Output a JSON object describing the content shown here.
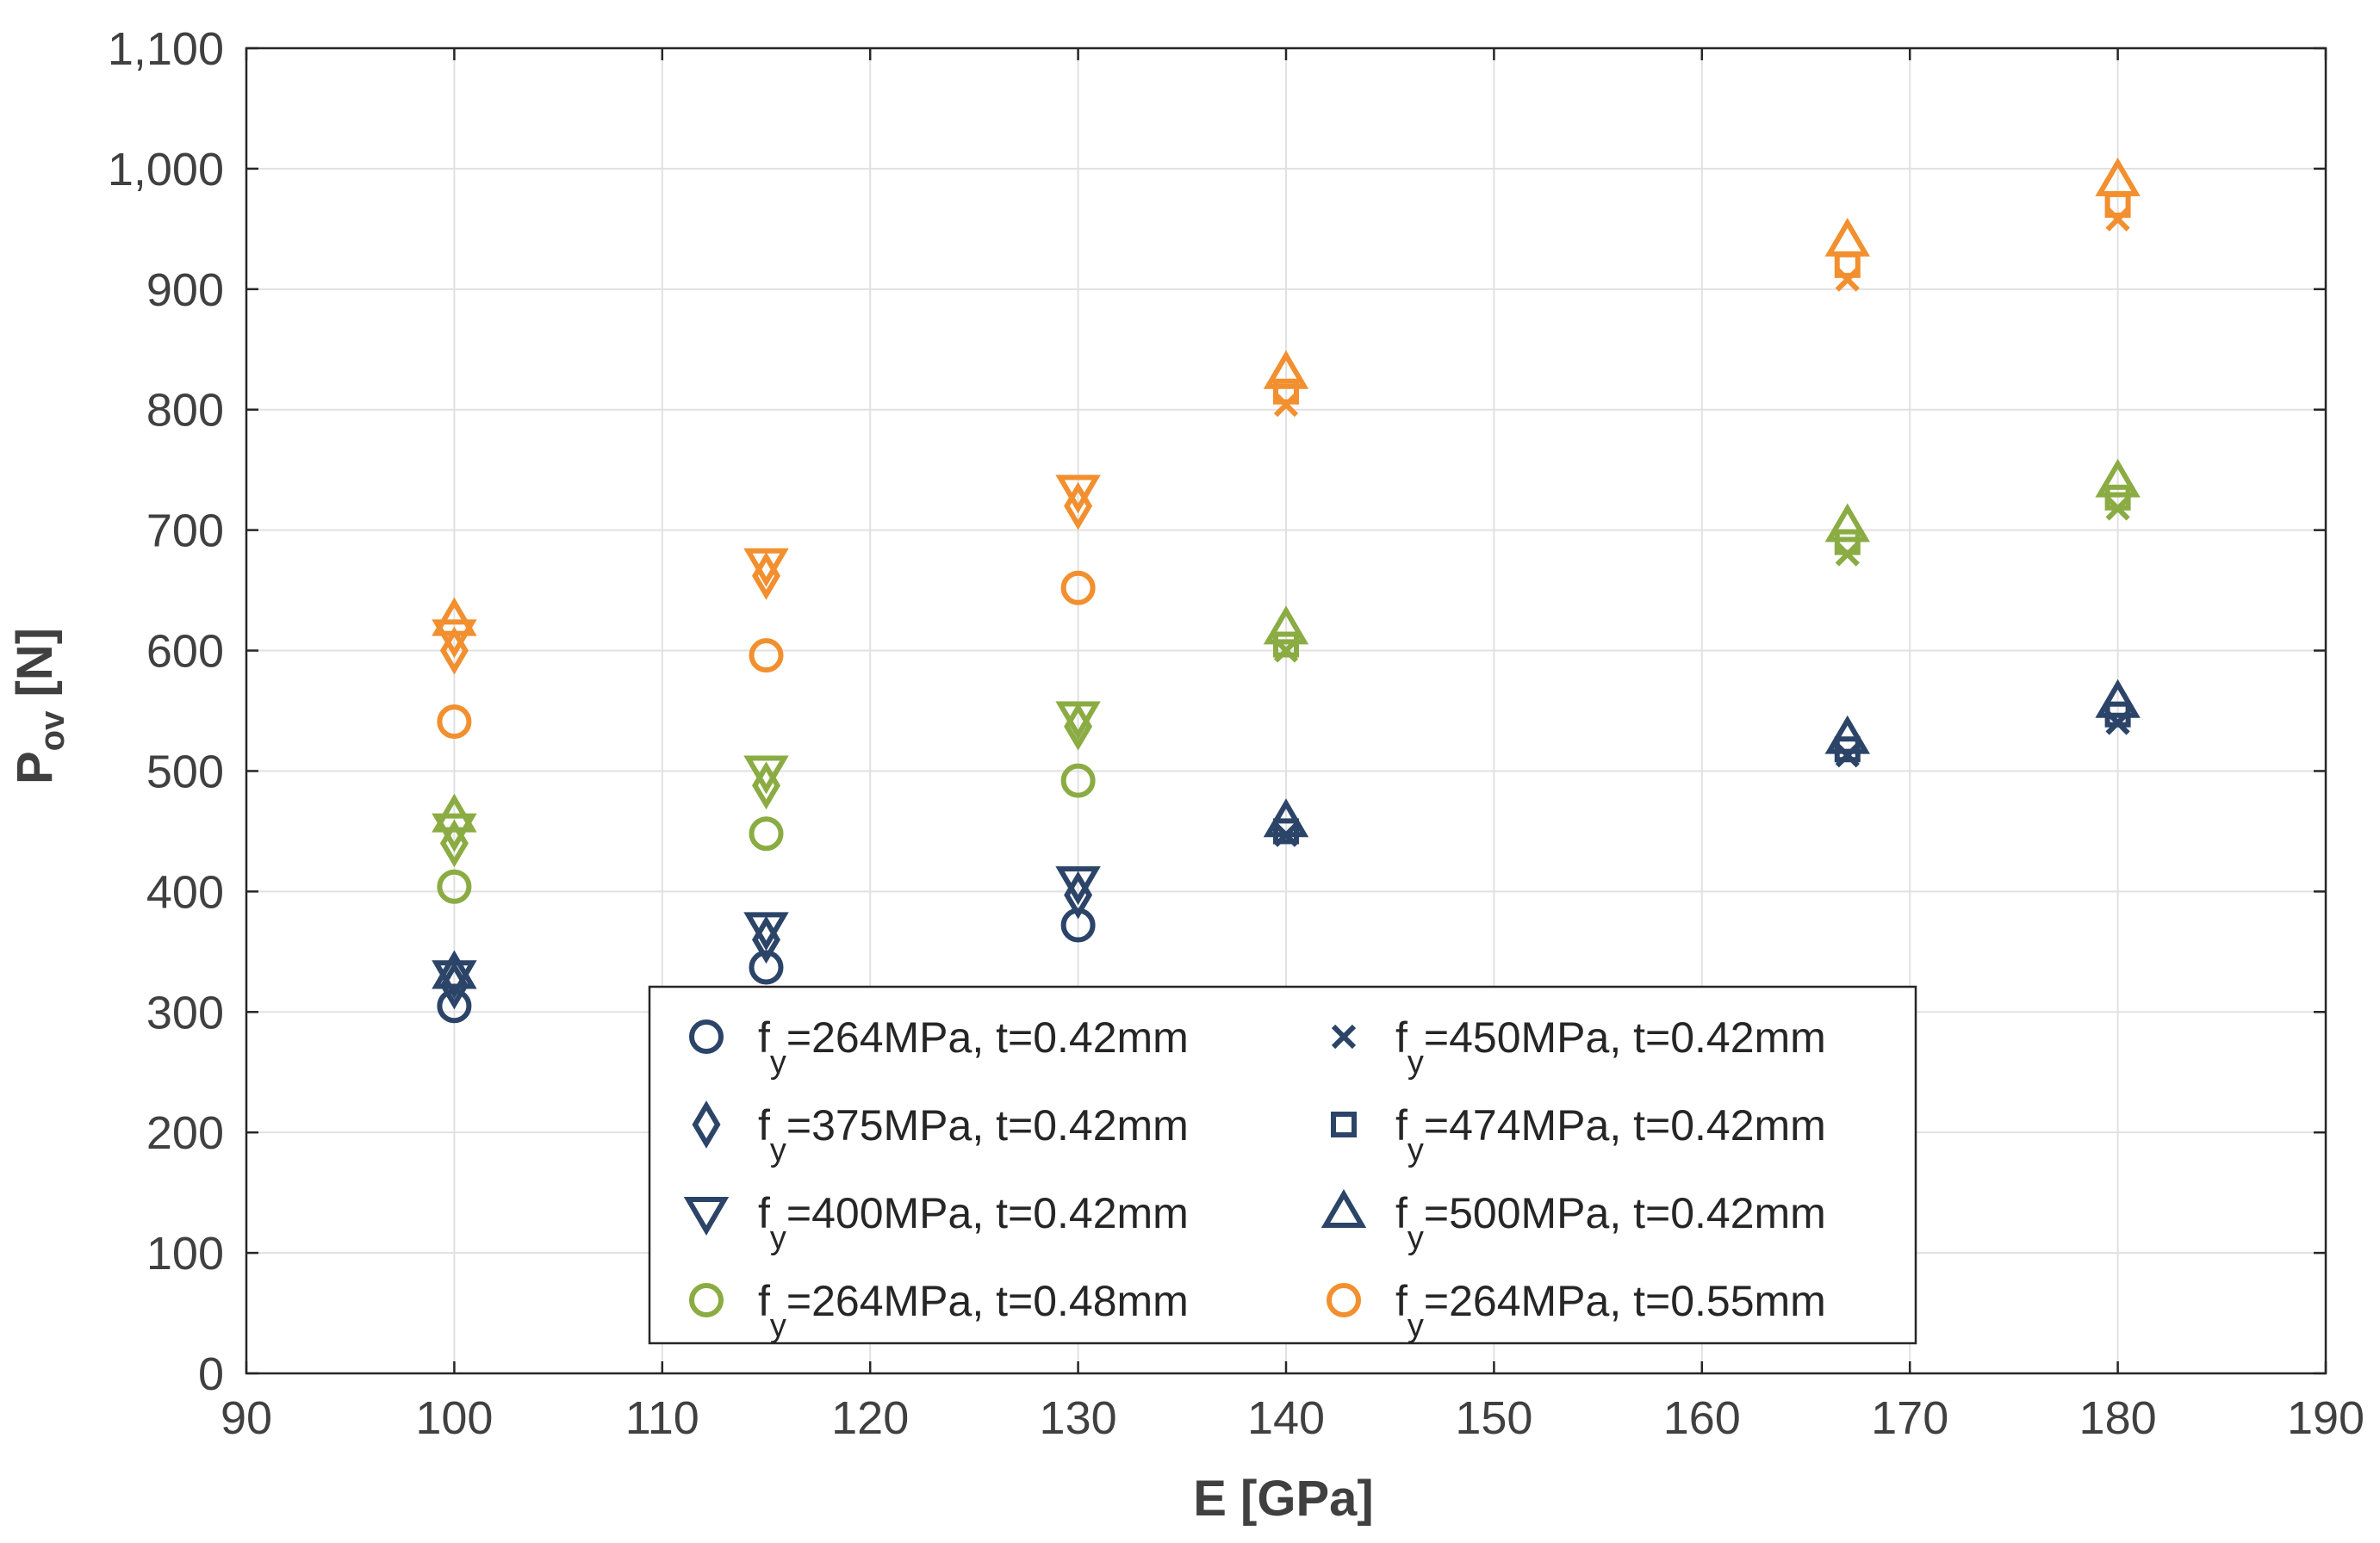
{
  "chart_data": {
    "type": "scatter",
    "title": "",
    "xlabel": "E [GPa]",
    "ylabel": {
      "main": "P",
      "sub": "ov",
      "unit": " [N]"
    },
    "xlim": [
      90,
      190
    ],
    "ylim": [
      0,
      1100
    ],
    "xticks": [
      90,
      100,
      110,
      120,
      130,
      140,
      150,
      160,
      170,
      180,
      190
    ],
    "yticks": [
      0,
      100,
      200,
      300,
      400,
      500,
      600,
      700,
      800,
      900,
      1000,
      1100
    ],
    "yticklabels": [
      "0",
      "100",
      "200",
      "300",
      "400",
      "500",
      "600",
      "700",
      "800",
      "900",
      "1,000",
      "1,100"
    ],
    "grid": true,
    "legend_position": "bottom-center",
    "colors": {
      "navy": "#2b4468",
      "green": "#8aac43",
      "orange": "#f28f2e"
    },
    "groups": [
      {
        "color": "#2b4468",
        "series": [
          {
            "legend_main": "f",
            "legend_sub": "y",
            "legend_rest": "=264MPa, t=0.42mm",
            "marker": "circle",
            "x": [
              100,
              115,
              130
            ],
            "y": [
              305,
              337,
              372
            ]
          },
          {
            "legend_main": "f",
            "legend_sub": "y",
            "legend_rest": "=375MPa, t=0.42mm",
            "marker": "diamond",
            "x": [
              100,
              115,
              130
            ],
            "y": [
              322,
              360,
              397
            ]
          },
          {
            "legend_main": "f",
            "legend_sub": "y",
            "legend_rest": "=400MPa, t=0.42mm",
            "marker": "triangle-down",
            "x": [
              100,
              115,
              130
            ],
            "y": [
              330,
              370,
              408
            ]
          },
          {
            "legend_main": "f",
            "legend_sub": "y",
            "legend_rest": "=450MPa, t=0.42mm",
            "marker": "x",
            "x": [
              140,
              167,
              180
            ],
            "y": [
              447,
              513,
              540
            ]
          },
          {
            "legend_main": "f",
            "legend_sub": "y",
            "legend_rest": "=474MPa, t=0.42mm",
            "marker": "square",
            "x": [
              140,
              167,
              180
            ],
            "y": [
              450,
              518,
              547
            ]
          },
          {
            "legend_main": "f",
            "legend_sub": "y",
            "legend_rest": "=500MPa, t=0.42mm",
            "marker": "triangle-up",
            "x": [
              100,
              140,
              167,
              180
            ],
            "y": [
              332,
              458,
              527,
              557
            ]
          }
        ]
      },
      {
        "color": "#8aac43",
        "series": [
          {
            "legend_main": "f",
            "legend_sub": "y",
            "legend_rest": "=264MPa, t=0.48mm",
            "marker": "circle",
            "x": [
              100,
              115,
              130
            ],
            "y": [
              404,
              448,
              492
            ]
          },
          {
            "marker": "diamond",
            "x": [
              100,
              115,
              130
            ],
            "y": [
              440,
              488,
              537
            ]
          },
          {
            "marker": "triangle-down",
            "x": [
              100,
              115,
              130
            ],
            "y": [
              452,
              500,
              545
            ]
          },
          {
            "marker": "x",
            "x": [
              140,
              167,
              180
            ],
            "y": [
              600,
              680,
              718
            ]
          },
          {
            "marker": "square",
            "x": [
              140,
              167,
              180
            ],
            "y": [
              605,
              690,
              727
            ]
          },
          {
            "marker": "triangle-up",
            "x": [
              100,
              140,
              167,
              180
            ],
            "y": [
              462,
              618,
              703,
              740
            ]
          }
        ]
      },
      {
        "color": "#f28f2e",
        "series": [
          {
            "legend_main": "f",
            "legend_sub": "y",
            "legend_rest": "=264MPa, t=0.55mm",
            "marker": "circle",
            "x": [
              100,
              115,
              130
            ],
            "y": [
              541,
              596,
              652
            ]
          },
          {
            "marker": "diamond",
            "x": [
              100,
              115,
              130
            ],
            "y": [
              600,
              662,
              720
            ]
          },
          {
            "marker": "triangle-down",
            "x": [
              100,
              115,
              130
            ],
            "y": [
              613,
              672,
              733
            ]
          },
          {
            "marker": "x",
            "x": [
              140,
              167,
              180
            ],
            "y": [
              804,
              908,
              958
            ]
          },
          {
            "marker": "square",
            "x": [
              140,
              167,
              180
            ],
            "y": [
              815,
              920,
              970
            ]
          },
          {
            "marker": "triangle-up",
            "x": [
              100,
              140,
              167,
              180
            ],
            "y": [
              625,
              830,
              940,
              990
            ]
          }
        ]
      }
    ],
    "legend": [
      {
        "marker": "circle",
        "color": "#2b4468",
        "main": "f",
        "sub": "y",
        "rest": "=264MPa, t=0.42mm"
      },
      {
        "marker": "x",
        "color": "#2b4468",
        "main": "f",
        "sub": "y",
        "rest": "=450MPa, t=0.42mm"
      },
      {
        "marker": "diamond",
        "color": "#2b4468",
        "main": "f",
        "sub": "y",
        "rest": "=375MPa, t=0.42mm"
      },
      {
        "marker": "square",
        "color": "#2b4468",
        "main": "f",
        "sub": "y",
        "rest": "=474MPa, t=0.42mm"
      },
      {
        "marker": "triangle-down",
        "color": "#2b4468",
        "main": "f",
        "sub": "y",
        "rest": "=400MPa, t=0.42mm"
      },
      {
        "marker": "triangle-up",
        "color": "#2b4468",
        "main": "f",
        "sub": "y",
        "rest": "=500MPa, t=0.42mm"
      },
      {
        "marker": "circle",
        "color": "#8aac43",
        "main": "f",
        "sub": "y",
        "rest": "=264MPa, t=0.48mm"
      },
      {
        "marker": "circle",
        "color": "#f28f2e",
        "main": "f",
        "sub": "y",
        "rest": "=264MPa, t=0.55mm"
      }
    ]
  }
}
